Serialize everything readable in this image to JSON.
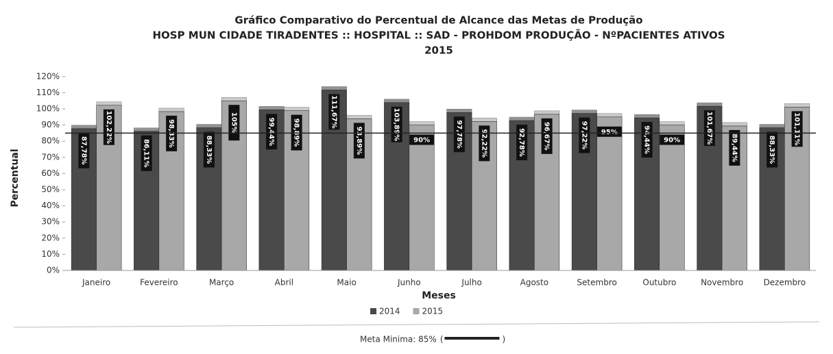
{
  "chart_data": {
    "type": "bar",
    "title": [
      "Gráfico Comparativo do Percentual de Alcance das Metas de Produção",
      "HOSP MUN CIDADE TIRADENTES :: HOSPITAL :: SAD - PROHDOM PRODUÇÃO - NºPACIENTES ATIVOS",
      "2015"
    ],
    "x_label": "Meses",
    "y_label": "Percentual",
    "categories": [
      "Janeiro",
      "Fevereiro",
      "Março",
      "Abril",
      "Maio",
      "Junho",
      "Julho",
      "Agosto",
      "Setembro",
      "Outubro",
      "Novembro",
      "Dezembro"
    ],
    "series": [
      {
        "name": "2014",
        "color": "#4a4a4a",
        "values": [
          87.78,
          86.11,
          88.33,
          99.44,
          111.67,
          103.89,
          97.78,
          92.78,
          97.22,
          94.44,
          101.67,
          88.33
        ],
        "value_labels": [
          "87,78%",
          "86,11%",
          "88,33%",
          "99,44%",
          "111,67%",
          "103,89%",
          "97,78%",
          "92,78%",
          "97,22%",
          "94,44%",
          "101,67%",
          "88,33%"
        ]
      },
      {
        "name": "2015",
        "color": "#a8a8a8",
        "values": [
          102.22,
          98.33,
          105,
          98.89,
          93.89,
          90,
          92.22,
          96.67,
          95,
          90,
          89.44,
          101.11
        ],
        "value_labels": [
          "102,22%",
          "98,33%",
          "105%",
          "98,89%",
          "93,89%",
          "90%",
          "92,22%",
          "96,67%",
          "95%",
          "90%",
          "89,44%",
          "101,11%"
        ]
      }
    ],
    "ylim": [
      0,
      125
    ],
    "yticks": [
      {
        "value": 0,
        "label": "0%"
      },
      {
        "value": 10,
        "label": "10%"
      },
      {
        "value": 20,
        "label": "20%"
      },
      {
        "value": 30,
        "label": "30%"
      },
      {
        "value": 40,
        "label": "40%"
      },
      {
        "value": 50,
        "label": "50%"
      },
      {
        "value": 60,
        "label": "60%"
      },
      {
        "value": 70,
        "label": "70%"
      },
      {
        "value": 80,
        "label": "80%"
      },
      {
        "value": 90,
        "label": "90%"
      },
      {
        "value": 100,
        "label": "100%"
      },
      {
        "value": 110,
        "label": "110%"
      },
      {
        "value": 120,
        "label": "120%"
      }
    ],
    "legend": "bottom",
    "target": {
      "label": "Meta Minima: 85%",
      "value": 85,
      "open": "(",
      "close": ")",
      "color": "#222222"
    }
  }
}
